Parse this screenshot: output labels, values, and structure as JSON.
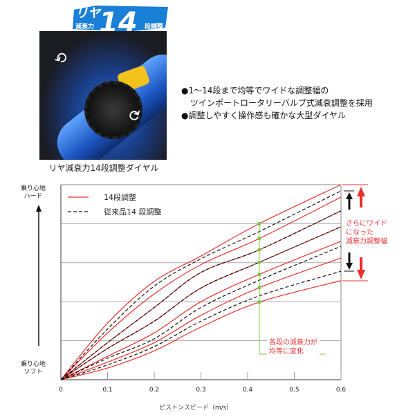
{
  "badge": {
    "line1": "リヤ",
    "line2": "減衰力",
    "number": "14",
    "line3": "段調整"
  },
  "photo": {
    "caption": "リヤ減衰力14段調整ダイヤル"
  },
  "features": [
    "●1～14段まで均等でワイドな調整幅の",
    "ツインポートロータリーバルブ式減衰調整を採用",
    "●調整しやすく操作感も確かな大型ダイヤル"
  ],
  "chart_data": {
    "type": "line",
    "xlabel": "ピストンスピード（m/s）",
    "ylabel_top": "乗り心地\nハード",
    "ylabel_bottom": "乗り心地\nソフト",
    "xlim": [
      0,
      0.6
    ],
    "xticks": [
      "0",
      "0.1",
      "0.2",
      "0.3",
      "0.4",
      "0.5",
      "0.6"
    ],
    "grid": "horizontal",
    "legend": {
      "placement": "top-left",
      "entries": [
        "14段調整",
        "従来品14 段調整"
      ]
    },
    "x": [
      0,
      0.1,
      0.2,
      0.3,
      0.425,
      0.6
    ],
    "series": [
      {
        "group": "14段調整",
        "color": "#e8302c",
        "style": "solid",
        "values": [
          [
            0,
            1.45,
            2.52,
            3.17,
            4.0,
            5.0
          ],
          [
            0,
            1.2,
            2.2,
            2.95,
            3.62,
            4.68
          ],
          [
            0,
            0.95,
            1.85,
            2.75,
            3.33,
            4.33
          ],
          [
            0,
            0.8,
            1.5,
            2.35,
            3.01,
            3.92
          ],
          [
            0,
            0.6,
            1.2,
            2.0,
            2.7,
            3.55
          ],
          [
            0,
            0.45,
            0.95,
            1.65,
            2.36,
            3.12
          ],
          [
            0,
            0.3,
            0.74,
            1.35,
            1.99,
            2.54
          ]
        ]
      },
      {
        "group": "従来品14 段調整",
        "color": "#111111",
        "style": "dashed",
        "values": [
          [
            0,
            1.3,
            2.4,
            3.1,
            3.8,
            4.84
          ],
          [
            0,
            0.95,
            1.85,
            2.75,
            3.33,
            4.33
          ],
          [
            0,
            0.8,
            1.5,
            2.35,
            3.01,
            3.92
          ],
          [
            0,
            0.55,
            1.05,
            1.85,
            2.55,
            3.42
          ],
          [
            0,
            0.38,
            0.85,
            1.5,
            2.15,
            2.78
          ]
        ]
      }
    ],
    "marker_x": 0.425,
    "annotations": {
      "wide": [
        "さらにワイド",
        "になった",
        "減衰力調整幅"
      ],
      "even": [
        "各段の減衰力が",
        "均等に変化"
      ]
    },
    "colors": {
      "accent": "#e8302c",
      "marker": "#7cc242"
    }
  }
}
